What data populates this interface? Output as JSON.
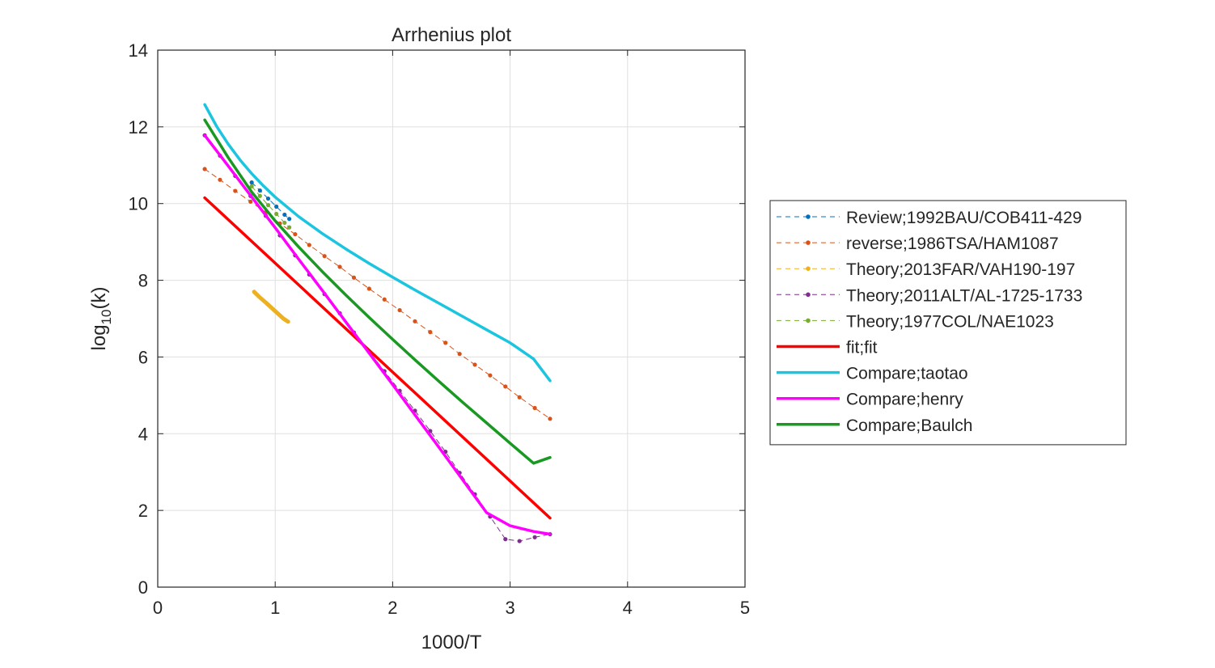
{
  "chart_data": {
    "type": "line",
    "title": "Arrhenius plot",
    "xlabel": "1000/T",
    "ylabel_main": "log",
    "ylabel_sub": "10",
    "ylabel_tail": "(k)",
    "xlim": [
      0,
      5
    ],
    "ylim": [
      0,
      14
    ],
    "xticks": [
      0,
      1,
      2,
      3,
      4,
      5
    ],
    "yticks": [
      0,
      2,
      4,
      6,
      8,
      10,
      12,
      14
    ],
    "grid": true,
    "legend_position": "right",
    "series": [
      {
        "name": "Review;1992BAU/COB411-429",
        "color": "#0072BD",
        "style": "dashed-marker",
        "x": [
          0.8,
          0.87,
          0.94,
          1.01,
          1.08,
          1.12
        ],
        "y": [
          10.55,
          10.34,
          10.13,
          9.92,
          9.71,
          9.6
        ]
      },
      {
        "name": "reverse;1986TSA/HAM1087",
        "color": "#D95319",
        "style": "dashed-marker",
        "x": [
          0.4,
          0.53,
          0.66,
          0.79,
          0.92,
          1.04,
          1.17,
          1.29,
          1.42,
          1.55,
          1.67,
          1.8,
          1.93,
          2.06,
          2.19,
          2.32,
          2.45,
          2.57,
          2.7,
          2.83,
          2.96,
          3.08,
          3.21,
          3.34
        ],
        "y": [
          10.9,
          10.62,
          10.33,
          10.05,
          9.77,
          9.48,
          9.2,
          8.92,
          8.63,
          8.35,
          8.07,
          7.78,
          7.5,
          7.22,
          6.93,
          6.65,
          6.37,
          6.08,
          5.8,
          5.52,
          5.23,
          4.95,
          4.67,
          4.39
        ]
      },
      {
        "name": "Theory;2013FAR/VAH190-197",
        "color": "#EDB120",
        "style": "dashed-marker-thick",
        "x": [
          0.82,
          0.87,
          0.92,
          0.97,
          1.02,
          1.07,
          1.11
        ],
        "y": [
          7.7,
          7.55,
          7.42,
          7.28,
          7.14,
          7.0,
          6.92
        ]
      },
      {
        "name": "Theory;2011ALT/AL-1725-1733",
        "color": "#7E2F8E",
        "style": "dashed-marker",
        "x": [
          0.4,
          0.53,
          0.66,
          0.79,
          0.92,
          1.04,
          1.17,
          1.29,
          1.42,
          1.55,
          1.67,
          1.8,
          1.93,
          2.06,
          2.19,
          2.32,
          2.45,
          2.57,
          2.7,
          2.83,
          2.96,
          3.08,
          3.21,
          3.34
        ],
        "y": [
          11.78,
          11.25,
          10.72,
          10.2,
          9.68,
          9.17,
          8.65,
          8.15,
          7.64,
          7.14,
          6.64,
          6.14,
          5.63,
          5.12,
          4.6,
          4.07,
          3.53,
          2.98,
          2.42,
          1.84,
          1.25,
          1.2,
          1.3,
          1.38
        ]
      },
      {
        "name": "Theory;1977COL/NAE1023",
        "color": "#77AC30",
        "style": "dashed-marker",
        "x": [
          0.8,
          0.87,
          0.94,
          1.01,
          1.08,
          1.12
        ],
        "y": [
          10.45,
          10.2,
          9.96,
          9.73,
          9.5,
          9.38
        ]
      },
      {
        "name": "fit;fit",
        "color": "#FF0000",
        "style": "solid",
        "x": [
          0.4,
          3.34
        ],
        "y": [
          10.15,
          1.8
        ]
      },
      {
        "name": "Compare;taotao",
        "color": "#1BC5E0",
        "style": "solid",
        "x": [
          0.4,
          0.5,
          0.6,
          0.7,
          0.8,
          0.9,
          1.0,
          1.2,
          1.4,
          1.6,
          1.8,
          2.0,
          2.2,
          2.4,
          2.6,
          2.8,
          3.0,
          3.2,
          3.34
        ],
        "y": [
          12.58,
          12.02,
          11.55,
          11.14,
          10.78,
          10.46,
          10.17,
          9.66,
          9.22,
          8.82,
          8.44,
          8.08,
          7.73,
          7.39,
          7.05,
          6.71,
          6.37,
          5.95,
          5.38
        ]
      },
      {
        "name": "Compare;henry",
        "color": "#FF00FF",
        "style": "solid",
        "x": [
          0.4,
          0.6,
          0.8,
          1.0,
          1.2,
          1.4,
          1.6,
          1.8,
          2.0,
          2.2,
          2.4,
          2.6,
          2.8,
          3.0,
          3.2,
          3.34
        ],
        "y": [
          11.78,
          10.98,
          10.17,
          9.37,
          8.55,
          7.74,
          6.92,
          6.1,
          5.28,
          4.45,
          3.62,
          2.78,
          1.94,
          1.6,
          1.45,
          1.38
        ]
      },
      {
        "name": "Compare;Baulch",
        "color": "#1A9922",
        "style": "solid",
        "x": [
          0.4,
          0.6,
          0.8,
          1.0,
          1.2,
          1.4,
          1.6,
          1.8,
          2.0,
          2.2,
          2.4,
          2.6,
          2.8,
          3.0,
          3.2,
          3.34
        ],
        "y": [
          12.18,
          11.2,
          10.3,
          9.55,
          8.87,
          8.23,
          7.62,
          7.03,
          6.46,
          5.9,
          5.35,
          4.81,
          4.28,
          3.75,
          3.23,
          3.38
        ]
      }
    ]
  }
}
